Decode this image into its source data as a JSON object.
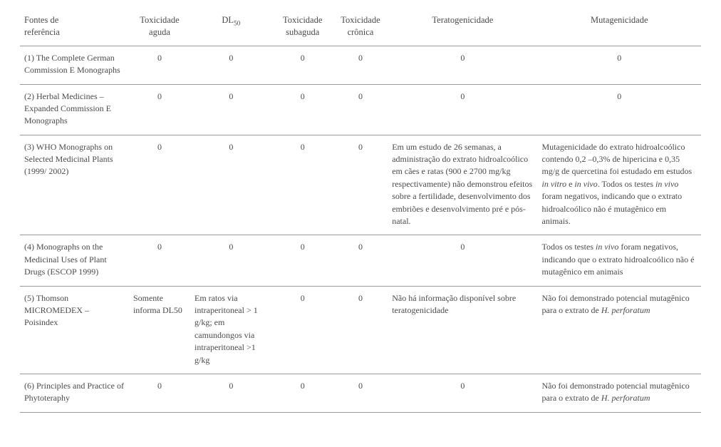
{
  "colors": {
    "text": "#4a4a4a",
    "rule": "#9a9a9a",
    "background": "#ffffff"
  },
  "typography": {
    "font_family": "Times New Roman",
    "header_fontsize_pt": 9,
    "body_fontsize_pt": 8.5,
    "line_height": 1.45
  },
  "table": {
    "type": "table",
    "column_widths_pct": [
      16,
      9,
      12,
      9,
      8,
      22,
      24
    ],
    "columns": {
      "ref": {
        "label_line1": "Fontes de",
        "label_line2": "referência",
        "align": "left"
      },
      "tox": {
        "label_line1": "Toxicidade",
        "label_line2": "aguda",
        "align": "center"
      },
      "dl": {
        "label_line1": "DL",
        "label_sub": "50",
        "align": "center"
      },
      "sub": {
        "label_line1": "Toxicidade",
        "label_line2": "subaguda",
        "align": "center"
      },
      "cro": {
        "label_line1": "Toxicidade",
        "label_line2": "crônica",
        "align": "center"
      },
      "ter": {
        "label": "Teratogenicidade",
        "align": "center"
      },
      "mut": {
        "label": "Mutagenicidade",
        "align": "center"
      }
    },
    "rows": [
      {
        "ref": "(1) The Complete German Commission E Monographs",
        "tox": "0",
        "dl": "0",
        "sub": "0",
        "cro": "0",
        "ter": "0",
        "mut": "0"
      },
      {
        "ref": "(2) Herbal Medicines – Expanded Commission E Monographs",
        "tox": "0",
        "dl": "0",
        "sub": "0",
        "cro": "0",
        "ter": "0",
        "mut": "0"
      },
      {
        "ref": "(3) WHO Monographs on Selected Medicinal Plants (1999/ 2002)",
        "tox": "0",
        "dl": "0",
        "sub": "0",
        "cro": "0",
        "ter": "Em um estudo de 26 semanas, a administração do extrato hidroalcoólico em cães e ratas (900 e 2700 mg/kg respectivamente) não demonstrou efeitos sobre a fertilidade, desenvolvimento dos embriões e desenvolvimento pré e pós-natal.",
        "mut_parts": {
          "a": "Mutagenicidade do extrato hidroalcoólico contendo 0,2 –0,3% de hipericina e 0,35 mg/g de quercetina foi estudado em estudos ",
          "i1": "in vitro",
          "b": " e ",
          "i2": "in vivo",
          "c": ". Todos os testes ",
          "i3": "in vivo",
          "d": " foram negativos, indicando que o extrato hidroalcoólico não é mutagênico em animais."
        }
      },
      {
        "ref": "(4) Monographs on the Medicinal Uses of Plant Drugs (ESCOP 1999)",
        "tox": "0",
        "dl": "0",
        "sub": "0",
        "cro": "0",
        "ter": "0",
        "mut_parts": {
          "a": "Todos os testes ",
          "i1": "in vivo",
          "b": " foram negativos, indicando que o extrato hidroalcoólico não é mutagênico em animais"
        }
      },
      {
        "ref": "(5) Thomson MICROMEDEX – Poisindex",
        "tox": "Somente informa DL50",
        "dl": "Em ratos via intraperitoneal > 1 g/kg; em camundongos via intraperitoneal >1 g/kg",
        "sub": "0",
        "cro": "0",
        "ter": "Não há informação disponível sobre teratogenicidade",
        "mut_parts": {
          "a": "Não foi demonstrado potencial mutagênico para o extrato de ",
          "i1": "H. perforatum"
        }
      },
      {
        "ref": "(6) Principles and Practice of Phytoteraphy",
        "tox": "0",
        "dl": "0",
        "sub": "0",
        "cro": "0",
        "ter": "0",
        "mut_parts": {
          "a": "Não foi demonstrado potencial mutagênico para o extrato de ",
          "i1": "H. perforatum"
        }
      }
    ]
  }
}
